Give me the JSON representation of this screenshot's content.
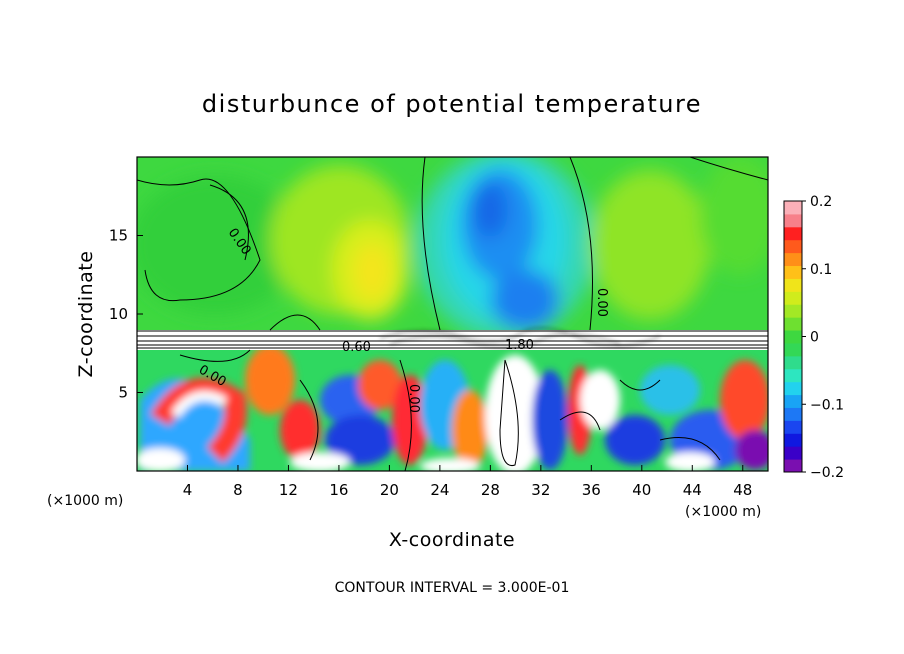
{
  "chart_data": {
    "type": "heatmap",
    "title": "disturbunce of potential temperature",
    "xlabel": "X-coordinate",
    "ylabel": "Z-coordinate",
    "x_unit_left": "(×1000 m)",
    "x_unit_right": "(×1000 m)",
    "xlim": [
      0,
      50
    ],
    "ylim": [
      0,
      20
    ],
    "x_ticks": [
      "4",
      "8",
      "12",
      "16",
      "20",
      "24",
      "28",
      "32",
      "36",
      "40",
      "44",
      "48"
    ],
    "y_ticks": [
      "5",
      "10",
      "15"
    ],
    "colorbar": {
      "range": [
        -0.2,
        0.2
      ],
      "tick_labels": [
        "0.2",
        "0.1",
        "0",
        "−0.1",
        "−0.2"
      ],
      "tick_values": [
        0.2,
        0.1,
        0,
        -0.1,
        -0.2
      ]
    },
    "contour_labels": [
      "0.00",
      "0.00",
      "0.00",
      "0.00",
      "0.60",
      "1.80"
    ],
    "footer": "CONTOUR INTERVAL = 3.000E-01",
    "colors": {
      "below_min": "#7a0fb0",
      "above_max": "#ffffff"
    }
  }
}
